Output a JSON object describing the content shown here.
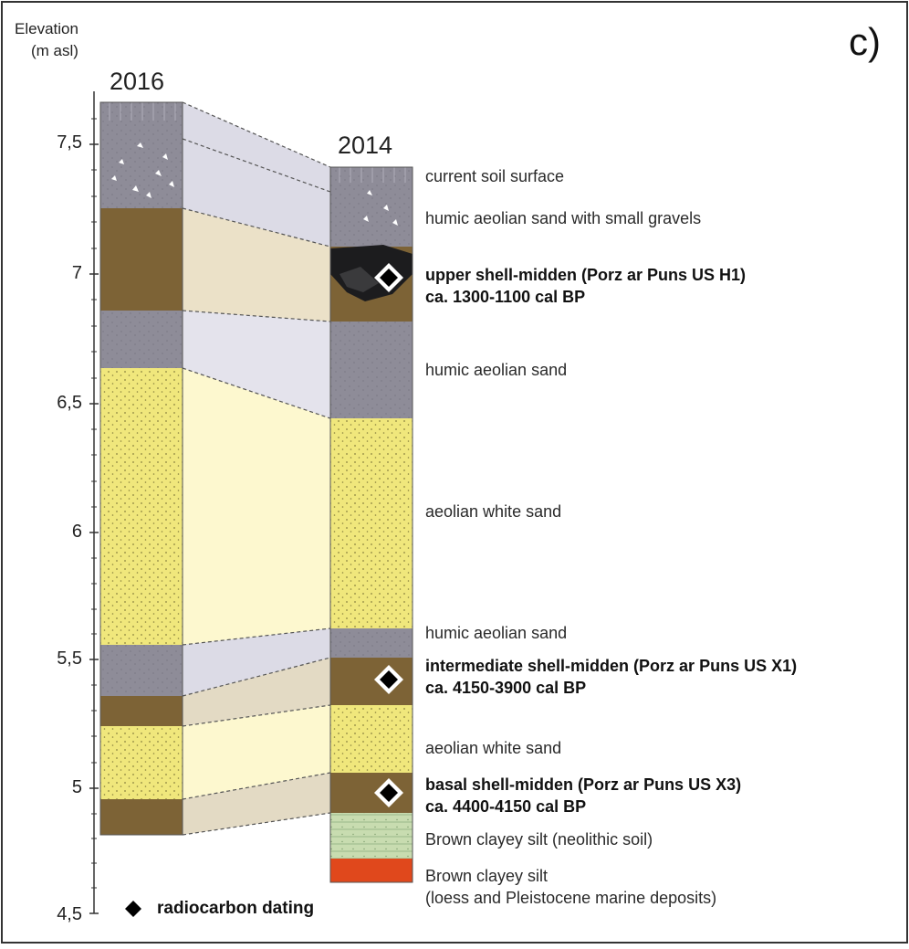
{
  "axis": {
    "title_line1": "Elevation",
    "title_line2": "(m asl)",
    "ticks": [
      "7,5",
      "7",
      "6,5",
      "6",
      "5,5",
      "5",
      "4,5"
    ]
  },
  "panel_label": "c)",
  "columns": {
    "left_year": "2016",
    "right_year": "2014"
  },
  "layers": [
    {
      "text": "current soil surface",
      "bold": false
    },
    {
      "text": "humic aeolian sand with small gravels",
      "bold": false
    },
    {
      "text": "upper shell-midden (Porz ar Puns US H1)",
      "bold": true
    },
    {
      "text": "ca. 1300-1100 cal BP",
      "bold": true
    },
    {
      "text": "humic aeolian sand",
      "bold": false
    },
    {
      "text": "aeolian white sand",
      "bold": false
    },
    {
      "text": "humic aeolian sand",
      "bold": false
    },
    {
      "text": "intermediate shell-midden (Porz ar Puns US X1)",
      "bold": true
    },
    {
      "text": "ca. 4150-3900 cal BP",
      "bold": true
    },
    {
      "text": "aeolian white sand",
      "bold": false
    },
    {
      "text": "basal shell-midden (Porz ar Puns US X3)",
      "bold": true
    },
    {
      "text": "ca. 4400-4150 cal BP",
      "bold": true
    },
    {
      "text": "Brown clayey silt (neolithic soil)",
      "bold": false
    },
    {
      "text": "Brown clayey silt",
      "bold": false
    },
    {
      "text": "(loess and Pleistocene marine deposits)",
      "bold": false
    }
  ],
  "legend": {
    "label": "radiocarbon dating"
  },
  "colors": {
    "grey_sand": "#8e8c98",
    "brown_midden": "#7d6336",
    "yellow_sand": "#f0e77c",
    "red_deposit": "#e0481c",
    "green_soil": "#c8dcb0",
    "dark_shell": "#1c1c1e"
  }
}
